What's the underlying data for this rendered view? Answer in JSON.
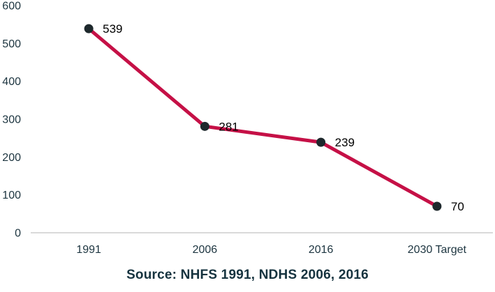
{
  "chart_data": {
    "type": "line",
    "categories": [
      "1991",
      "2006",
      "2016",
      "2030 Target"
    ],
    "values": [
      539,
      281,
      239,
      70
    ],
    "data_labels": [
      "539",
      "281",
      "239",
      "70"
    ],
    "title": "",
    "xlabel": "",
    "ylabel": "",
    "ylim": [
      0,
      600
    ],
    "yticks": [
      0,
      100,
      200,
      300,
      400,
      500,
      600
    ],
    "grid": false,
    "legend": false,
    "line_color": "#c51046",
    "marker_color": "#1e282c",
    "tick_label_color": "#1d3540",
    "data_label_color": "#000000",
    "axis_line_color": "#d9d9d9"
  },
  "footer": {
    "source_text": "Source: NHFS 1991, NDHS 2006, 2016",
    "color": "#16333f"
  }
}
